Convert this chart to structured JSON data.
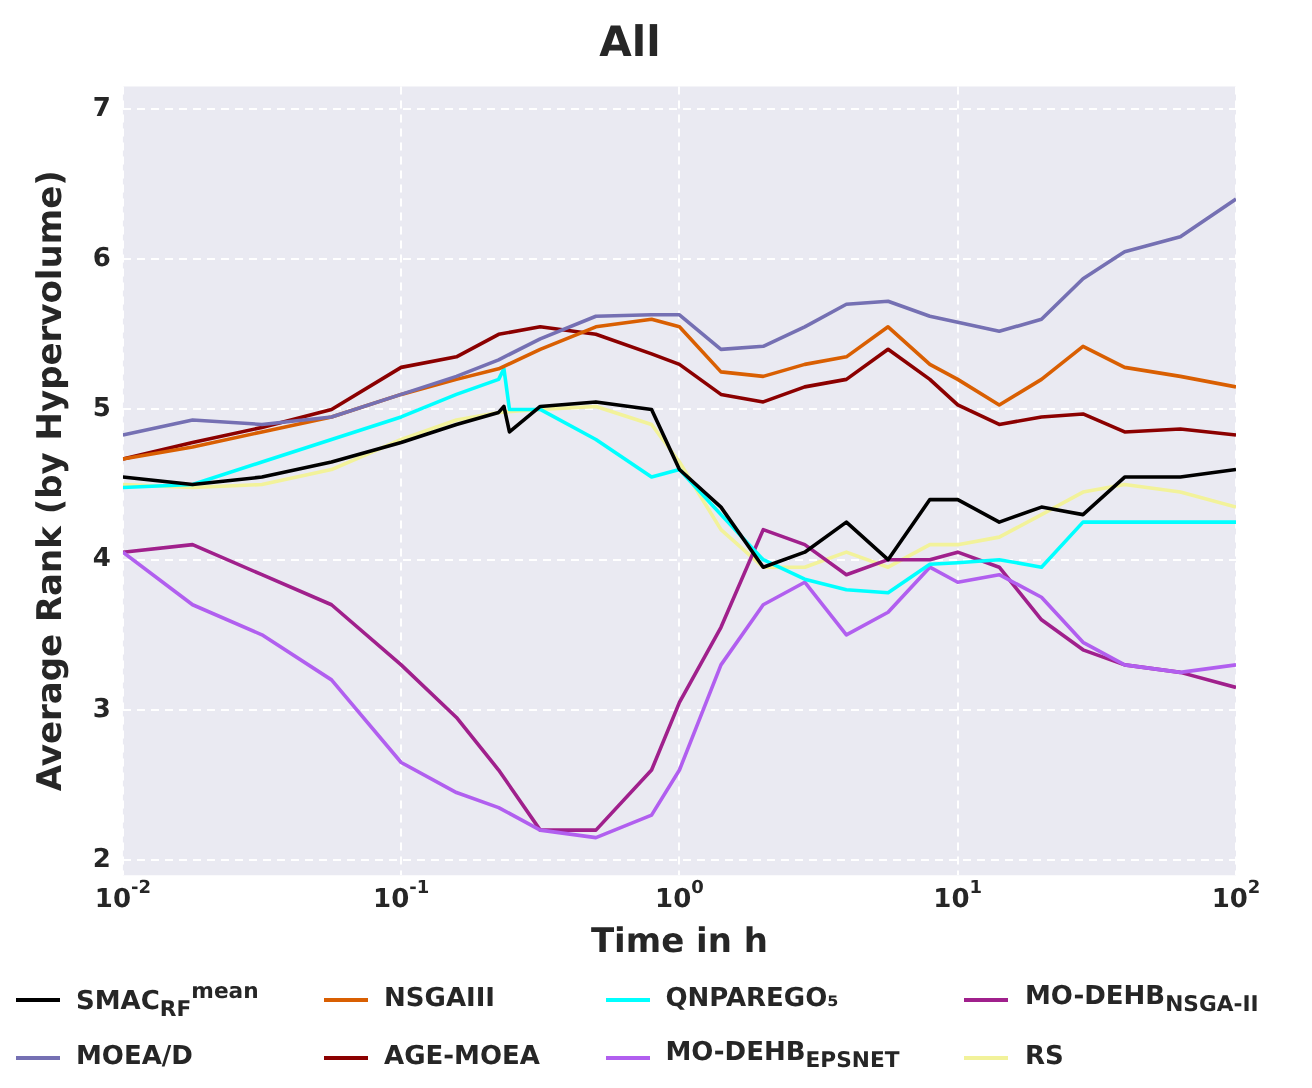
{
  "chart_data": {
    "type": "line",
    "title": "All",
    "xlabel": "Time in h",
    "ylabel": "Average Rank (by Hypervolume)",
    "log": "x",
    "grid": true,
    "legend": "bottom",
    "marker": "none",
    "line_style": "solid",
    "xlim": [
      0.01,
      100
    ],
    "xticks": [
      {
        "value": 0.01,
        "label": "10$^{-2}$"
      },
      {
        "value": 0.1,
        "label": "10$^{-1}$"
      },
      {
        "value": 1,
        "label": "10$^{0}$"
      },
      {
        "value": 10,
        "label": "10$^{1}$"
      },
      {
        "value": 100,
        "label": "10$^{2}$"
      }
    ],
    "ylim": [
      1.9,
      7.15
    ],
    "yticks": [
      2,
      3,
      4,
      5,
      6,
      7
    ],
    "x": [
      0.01,
      0.0178,
      0.0316,
      0.0562,
      0.1,
      0.158,
      0.224,
      0.316,
      0.501,
      0.794,
      1,
      1.41,
      2,
      2.82,
      3.98,
      5.62,
      7.94,
      10,
      14.1,
      20,
      28.2,
      39.8,
      63.1,
      100
    ],
    "series": [
      {
        "name": "SMAC$_{RF}$$^{mean}$",
        "color": "#000000",
        "x": [
          0.01,
          0.0178,
          0.0316,
          0.0562,
          0.1,
          0.158,
          0.224,
          0.234,
          0.245,
          0.316,
          0.501,
          0.794,
          1,
          1.41,
          2,
          2.82,
          3.98,
          5.62,
          7.94,
          10,
          14.1,
          20,
          28.2,
          39.8,
          63.1,
          100
        ],
        "values": [
          4.55,
          4.5,
          4.55,
          4.65,
          4.78,
          4.9,
          4.98,
          5.02,
          4.85,
          5.02,
          5.05,
          5.0,
          4.6,
          4.35,
          3.95,
          4.05,
          4.25,
          4.0,
          4.4,
          4.4,
          4.25,
          4.35,
          4.3,
          4.55,
          4.55,
          4.6
        ]
      },
      {
        "name": "MOEA/D",
        "color": "#7570b3",
        "values": [
          4.83,
          4.93,
          4.9,
          4.95,
          5.1,
          5.22,
          5.33,
          5.47,
          5.62,
          5.63,
          5.63,
          5.4,
          5.42,
          5.55,
          5.7,
          5.72,
          5.62,
          5.58,
          5.52,
          5.6,
          5.87,
          6.05,
          6.15,
          6.4
        ]
      },
      {
        "name": "NSGAIII",
        "color": "#d95f02",
        "values": [
          4.67,
          4.75,
          4.85,
          4.95,
          5.1,
          5.2,
          5.27,
          5.4,
          5.55,
          5.6,
          5.55,
          5.25,
          5.22,
          5.3,
          5.35,
          5.55,
          5.3,
          5.2,
          5.03,
          5.2,
          5.42,
          5.28,
          5.22,
          5.15
        ]
      },
      {
        "name": "AGE-MOEA",
        "color": "#8b0000",
        "values": [
          4.67,
          4.78,
          4.88,
          5.0,
          5.28,
          5.35,
          5.5,
          5.55,
          5.5,
          5.37,
          5.3,
          5.1,
          5.05,
          5.15,
          5.2,
          5.4,
          5.2,
          5.03,
          4.9,
          4.95,
          4.97,
          4.85,
          4.87,
          4.83
        ]
      },
      {
        "name": "QNPAREGO₅",
        "color": "#00ffff",
        "x": [
          0.01,
          0.0178,
          0.0316,
          0.0562,
          0.1,
          0.158,
          0.224,
          0.234,
          0.245,
          0.316,
          0.501,
          0.794,
          1,
          1.41,
          2,
          2.82,
          3.98,
          5.62,
          7.94,
          10,
          14.1,
          20,
          28.2,
          39.8,
          63.1,
          100
        ],
        "values": [
          4.48,
          4.5,
          4.65,
          4.8,
          4.95,
          5.1,
          5.2,
          5.27,
          5.0,
          5.0,
          4.8,
          4.55,
          4.6,
          4.3,
          4.0,
          3.87,
          3.8,
          3.78,
          3.97,
          3.98,
          4.0,
          3.95,
          4.25,
          4.25,
          4.25,
          4.25
        ]
      },
      {
        "name": "MO-DEHB$_{EPSNET}$",
        "color": "#b15fef",
        "values": [
          4.05,
          3.7,
          3.5,
          3.2,
          2.65,
          2.45,
          2.35,
          2.2,
          2.15,
          2.3,
          2.6,
          3.3,
          3.7,
          3.85,
          3.5,
          3.65,
          3.95,
          3.85,
          3.9,
          3.75,
          3.45,
          3.3,
          3.25,
          3.3
        ]
      },
      {
        "name": "MO-DEHB$_{NSGA-II}$",
        "color": "#a0208c",
        "values": [
          4.05,
          4.1,
          3.9,
          3.7,
          3.3,
          2.95,
          2.6,
          2.2,
          2.2,
          2.6,
          3.05,
          3.55,
          4.2,
          4.1,
          3.9,
          4.0,
          4.0,
          4.05,
          3.95,
          3.6,
          3.4,
          3.3,
          3.25,
          3.15
        ]
      },
      {
        "name": "RS",
        "color": "#f2f29a",
        "values": [
          4.5,
          4.48,
          4.5,
          4.6,
          4.8,
          4.93,
          4.98,
          5.0,
          5.02,
          4.9,
          4.65,
          4.2,
          3.95,
          3.95,
          4.05,
          3.95,
          4.1,
          4.1,
          4.15,
          4.3,
          4.45,
          4.5,
          4.45,
          4.35
        ]
      }
    ]
  }
}
